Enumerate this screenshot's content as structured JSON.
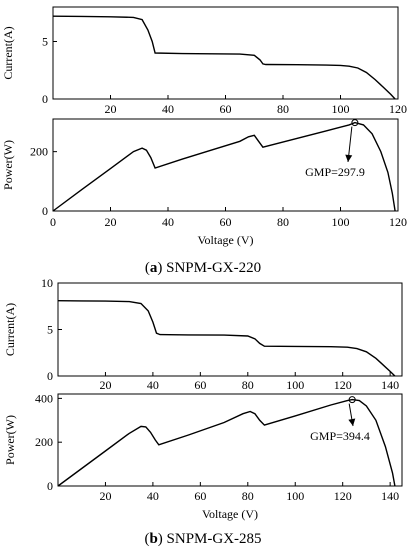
{
  "chart_data": [
    {
      "type": "line",
      "panel": "a-current",
      "xlabel": "",
      "ylabel": "Current(A)",
      "xlim": [
        0,
        120
      ],
      "ylim": [
        0,
        8
      ],
      "xticks": [
        "20",
        "40",
        "60",
        "80",
        "100",
        "120"
      ],
      "yticks": [
        "0",
        "5"
      ],
      "series": [
        {
          "x": [
            0,
            10,
            20,
            28,
            31,
            33,
            34.5,
            35.5,
            45,
            55,
            65,
            70,
            72,
            73,
            74,
            85,
            95,
            100,
            103,
            106,
            109,
            112,
            115,
            117.5,
            119
          ],
          "y": [
            7.2,
            7.18,
            7.15,
            7.1,
            6.9,
            6.0,
            5.0,
            4.0,
            3.95,
            3.93,
            3.9,
            3.8,
            3.4,
            3.05,
            3.0,
            2.98,
            2.95,
            2.92,
            2.85,
            2.7,
            2.3,
            1.7,
            1.0,
            0.4,
            0.0
          ]
        }
      ]
    },
    {
      "type": "line",
      "panel": "a-power",
      "xlabel": "Voltage (V)",
      "ylabel": "Power(W)",
      "xlim": [
        0,
        120
      ],
      "ylim": [
        0,
        310
      ],
      "xticks": [
        "0",
        "20",
        "40",
        "60",
        "80",
        "100",
        "120"
      ],
      "yticks": [
        "0",
        "200"
      ],
      "series": [
        {
          "x": [
            0,
            10,
            20,
            28,
            31,
            32.5,
            34,
            35.5,
            45,
            55,
            65,
            68,
            70,
            71.5,
            73,
            85,
            95,
            103,
            105,
            108,
            111,
            114,
            116.5,
            118,
            119
          ],
          "y": [
            0,
            72,
            143,
            200,
            212,
            205,
            180,
            145,
            175,
            205,
            235,
            250,
            255,
            235,
            215,
            245,
            270,
            290,
            297.9,
            290,
            260,
            200,
            130,
            60,
            0
          ]
        }
      ],
      "annotation": {
        "text": "GMP=297.9",
        "x": 105,
        "y": 297.9
      }
    },
    {
      "type": "line",
      "panel": "b-current",
      "xlabel": "",
      "ylabel": "Current(A)",
      "xlim": [
        0,
        145
      ],
      "ylim": [
        0,
        10
      ],
      "xticks": [
        "20",
        "40",
        "60",
        "80",
        "100",
        "120",
        "140"
      ],
      "yticks": [
        "0",
        "5",
        "10"
      ],
      "series": [
        {
          "x": [
            0,
            10,
            20,
            30,
            35,
            38,
            40,
            41.5,
            43,
            55,
            70,
            80,
            83,
            85,
            87,
            100,
            115,
            122,
            126,
            130,
            134,
            137,
            140,
            142
          ],
          "y": [
            8.1,
            8.08,
            8.05,
            8.0,
            7.8,
            7.0,
            5.8,
            4.6,
            4.45,
            4.42,
            4.4,
            4.3,
            4.0,
            3.5,
            3.2,
            3.18,
            3.15,
            3.1,
            2.95,
            2.6,
            1.9,
            1.2,
            0.5,
            0.0
          ]
        }
      ]
    },
    {
      "type": "line",
      "panel": "b-power",
      "xlabel": "Voltage (V)",
      "ylabel": "Power(W)",
      "xlim": [
        0,
        145
      ],
      "ylim": [
        0,
        420
      ],
      "xticks": [
        "20",
        "40",
        "60",
        "80",
        "100",
        "120",
        "140"
      ],
      "yticks": [
        "0",
        "200",
        "400"
      ],
      "series": [
        {
          "x": [
            0,
            10,
            20,
            30,
            35,
            37,
            39,
            41,
            42.5,
            55,
            70,
            78,
            81,
            83,
            85,
            87,
            100,
            115,
            122,
            124,
            127,
            130,
            134,
            138,
            141,
            142
          ],
          "y": [
            0,
            80,
            160,
            240,
            272,
            270,
            245,
            210,
            188,
            233,
            290,
            330,
            340,
            330,
            300,
            278,
            320,
            370,
            390,
            394.4,
            390,
            365,
            300,
            180,
            60,
            0
          ]
        }
      ],
      "annotation": {
        "text": "GMP=394.4",
        "x": 124,
        "y": 394.4
      }
    }
  ],
  "captions": {
    "a_letter": "a",
    "a_rest": " SNPM-GX-220",
    "b_letter": "b",
    "b_rest": " SNPM-GX-285"
  }
}
